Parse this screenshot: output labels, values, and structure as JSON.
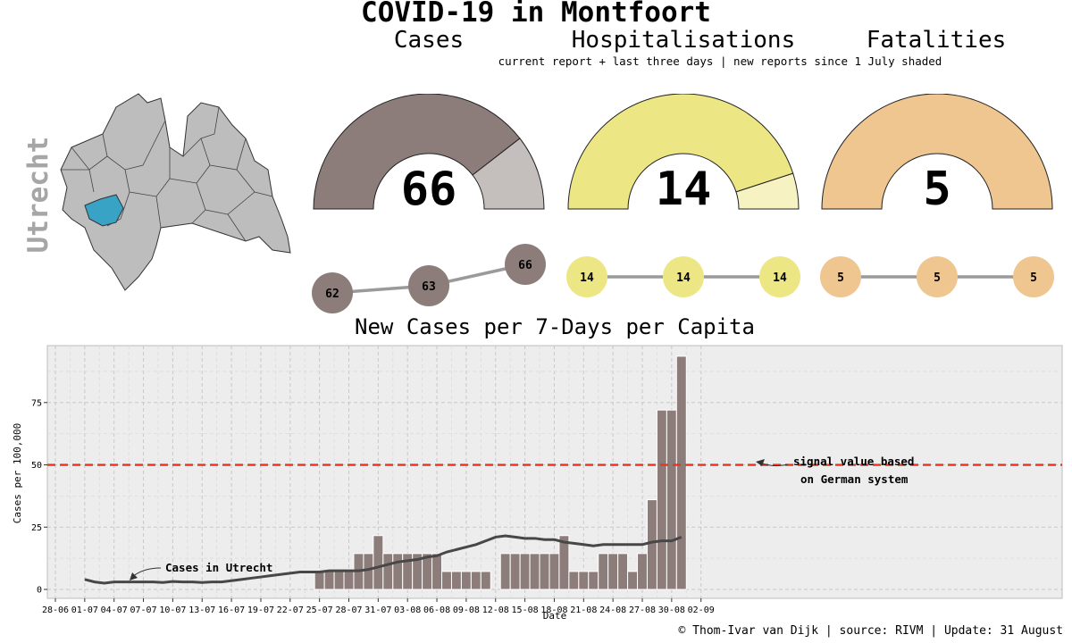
{
  "header": {
    "title": "COVID-19 in Montfoort",
    "cases_label": "Cases",
    "hosp_label": "Hospitalisations",
    "fatal_label": "Fatalities",
    "subtitle": "current report + last three days | new reports  since 1 July shaded"
  },
  "map": {
    "region_label": "Utrecht"
  },
  "gauges": {
    "cases": {
      "value": "66",
      "new_fraction": 0.21,
      "color_main": "#8c7d7b",
      "color_new": "#c4bfbd"
    },
    "hosp": {
      "value": "14",
      "new_fraction": 0.1,
      "color_main": "#ede685",
      "color_new": "#f6f2c2"
    },
    "fatal": {
      "value": "5",
      "new_fraction": 0.0,
      "color_main": "#efc590",
      "color_new": "#f7e2c5"
    }
  },
  "trend": {
    "cases": [
      "62",
      "63",
      "66"
    ],
    "hosp": [
      "14",
      "14",
      "14"
    ],
    "fatal": [
      "5",
      "5",
      "5"
    ]
  },
  "chart_title": "New Cases per 7-Days per Capita",
  "footer": "© Thom-Ivar van Dijk | source: RIVM | Update: 31 August",
  "chart_data": {
    "type": "bar",
    "title": "New Cases per 7-Days per Capita",
    "xlabel": "Date",
    "ylabel": "Cases per 100,000",
    "ylim": [
      0,
      95
    ],
    "yticks": [
      0,
      25,
      50,
      75
    ],
    "grid": true,
    "x_start": "28-06",
    "x_tick_labels": [
      "28-06",
      "01-07",
      "04-07",
      "07-07",
      "10-07",
      "13-07",
      "16-07",
      "19-07",
      "22-07",
      "25-07",
      "28-07",
      "31-07",
      "03-08",
      "06-08",
      "09-08",
      "12-08",
      "15-08",
      "18-08",
      "21-08",
      "24-08",
      "27-08",
      "30-08",
      "02-09"
    ],
    "bars_x": [
      "25-07",
      "26-07",
      "27-07",
      "28-07",
      "29-07",
      "30-07",
      "31-07",
      "01-08",
      "02-08",
      "03-08",
      "04-08",
      "05-08",
      "06-08",
      "07-08",
      "08-08",
      "09-08",
      "10-08",
      "11-08",
      "12-08",
      "13-08",
      "14-08",
      "15-08",
      "16-08",
      "17-08",
      "18-08",
      "19-08",
      "20-08",
      "21-08",
      "22-08",
      "23-08",
      "24-08",
      "25-08",
      "26-08",
      "27-08",
      "28-08",
      "29-08",
      "30-08",
      "31-08"
    ],
    "bars": [
      7.2,
      7.2,
      7.2,
      7.2,
      14.4,
      14.4,
      21.6,
      14.4,
      14.4,
      14.4,
      14.4,
      14.4,
      14.4,
      7.2,
      7.2,
      7.2,
      7.2,
      7.2,
      0,
      14.4,
      14.4,
      14.4,
      14.4,
      14.4,
      14.4,
      21.6,
      7.2,
      7.2,
      7.2,
      14.4,
      14.4,
      14.4,
      7.2,
      14.4,
      36,
      72,
      72,
      93.6
    ],
    "bar_color": "#8c7d7b",
    "threshold": {
      "value": 50,
      "color": "#e8341c",
      "label_line1": "signal value based",
      "label_line2": "on German system"
    },
    "region_line": {
      "name": "Cases in Utrecht",
      "color": "#474747",
      "x": [
        "01-07",
        "02-07",
        "03-07",
        "04-07",
        "05-07",
        "06-07",
        "07-07",
        "08-07",
        "09-07",
        "10-07",
        "11-07",
        "12-07",
        "13-07",
        "14-07",
        "15-07",
        "16-07",
        "17-07",
        "18-07",
        "19-07",
        "20-07",
        "21-07",
        "22-07",
        "23-07",
        "24-07",
        "25-07",
        "26-07",
        "27-07",
        "28-07",
        "29-07",
        "30-07",
        "31-07",
        "01-08",
        "02-08",
        "03-08",
        "04-08",
        "05-08",
        "06-08",
        "07-08",
        "08-08",
        "09-08",
        "10-08",
        "11-08",
        "12-08",
        "13-08",
        "14-08",
        "15-08",
        "16-08",
        "17-08",
        "18-08",
        "19-08",
        "20-08",
        "21-08",
        "22-08",
        "23-08",
        "24-08",
        "25-08",
        "26-08",
        "27-08",
        "28-08",
        "29-08",
        "30-08",
        "31-08"
      ],
      "y": [
        4,
        3,
        2.5,
        3,
        3,
        3,
        3,
        3,
        2.8,
        3.2,
        3,
        3,
        2.8,
        3,
        3,
        3.5,
        4,
        4.5,
        5,
        5.5,
        6,
        6.5,
        7,
        7,
        7,
        7.5,
        7.5,
        7.5,
        7.5,
        8,
        9,
        10,
        11,
        11.5,
        12,
        13,
        13.5,
        15,
        16,
        17,
        18,
        19.5,
        21,
        21.5,
        21,
        20.5,
        20.5,
        20,
        20,
        19,
        18.5,
        18,
        17.5,
        18,
        18,
        18,
        18,
        18,
        19,
        19.5,
        19.5,
        21
      ]
    }
  }
}
